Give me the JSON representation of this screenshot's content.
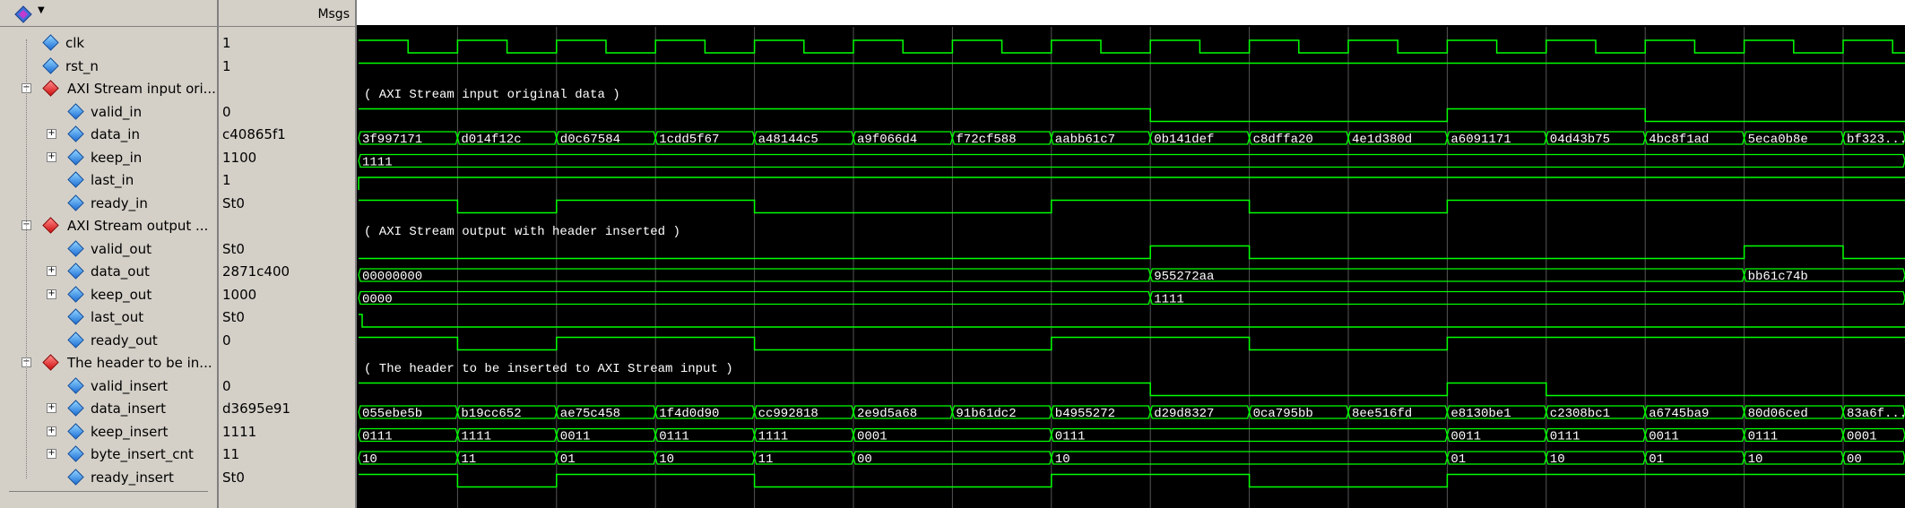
{
  "header": {
    "msgs_label": "Msgs",
    "logo_icon": "wave-tool-icon"
  },
  "colors": {
    "wave": "#00ff00",
    "label_bg": "#d4d0c8",
    "bus_text": "#ffffff",
    "grid": "#808080"
  },
  "signals": [
    {
      "name": "clk",
      "value": "1",
      "kind": "leaf",
      "indent": 1
    },
    {
      "name": "rst_n",
      "value": "1",
      "kind": "leaf",
      "indent": 1
    },
    {
      "name": "AXI Stream input ori...",
      "value": "",
      "kind": "group",
      "indent": 0
    },
    {
      "name": "valid_in",
      "value": "0",
      "kind": "leaf",
      "indent": 2
    },
    {
      "name": "data_in",
      "value": "c40865f1",
      "kind": "bus",
      "indent": 2
    },
    {
      "name": "keep_in",
      "value": "1100",
      "kind": "bus",
      "indent": 2
    },
    {
      "name": "last_in",
      "value": "1",
      "kind": "leaf",
      "indent": 2
    },
    {
      "name": "ready_in",
      "value": "St0",
      "kind": "leaf",
      "indent": 2
    },
    {
      "name": "AXI Stream output ...",
      "value": "",
      "kind": "group",
      "indent": 0
    },
    {
      "name": "valid_out",
      "value": "St0",
      "kind": "leaf",
      "indent": 2
    },
    {
      "name": "data_out",
      "value": "2871c400",
      "kind": "bus",
      "indent": 2
    },
    {
      "name": "keep_out",
      "value": "1000",
      "kind": "bus",
      "indent": 2
    },
    {
      "name": "last_out",
      "value": "St0",
      "kind": "leaf",
      "indent": 2
    },
    {
      "name": "ready_out",
      "value": "0",
      "kind": "leaf",
      "indent": 2
    },
    {
      "name": "The header to be in...",
      "value": "",
      "kind": "group",
      "indent": 0
    },
    {
      "name": "valid_insert",
      "value": "0",
      "kind": "leaf",
      "indent": 2
    },
    {
      "name": "data_insert",
      "value": "d3695e91",
      "kind": "bus",
      "indent": 2
    },
    {
      "name": "keep_insert",
      "value": "1111",
      "kind": "bus",
      "indent": 2
    },
    {
      "name": "byte_insert_cnt",
      "value": "11",
      "kind": "bus",
      "indent": 2
    },
    {
      "name": "ready_insert",
      "value": "St0",
      "kind": "leaf",
      "indent": 2
    }
  ],
  "group_labels": [
    {
      "row": 2,
      "text": "( AXI Stream input original data )"
    },
    {
      "row": 8,
      "text": "( AXI Stream output with header inserted )"
    },
    {
      "row": 14,
      "text": "( The header to be inserted to AXI Stream input )"
    }
  ],
  "bus_values": {
    "data_in": [
      "3f997171",
      "d014f12c",
      "d0c67584",
      "1cdd5f67",
      "a48144c5",
      "a9f066d4",
      "f72cf588",
      "aabb61c7",
      "0b141def",
      "c8dffa20",
      "4e1d380d",
      "a6091171",
      "04d43b75",
      "4bc8f1ad",
      "5eca0b8e",
      "bf323..."
    ],
    "keep_in": [
      "1111"
    ],
    "data_out": [
      "00000000",
      "955272aa",
      "bb61c74b"
    ],
    "keep_out": [
      "0000",
      "1111"
    ],
    "data_insert": [
      "055ebe5b",
      "b19cc652",
      "ae75c458",
      "1f4d0d90",
      "cc992818",
      "2e9d5a68",
      "91b61dc2",
      "b4955272",
      "d29d8327",
      "0ca795bb",
      "8ee516fd",
      "e8130be1",
      "c2308bc1",
      "a6745ba9",
      "80d06ced",
      "83a6f..."
    ],
    "keep_insert": [
      "0111",
      "1111",
      "0011",
      "0111",
      "1111",
      "0001",
      "0111",
      "0011",
      "0111",
      "0011",
      "0111",
      "0001"
    ],
    "byte_insert_cnt": [
      "10",
      "11",
      "01",
      "10",
      "11",
      "00",
      "10",
      "01",
      "10",
      "01",
      "10",
      "00"
    ]
  }
}
